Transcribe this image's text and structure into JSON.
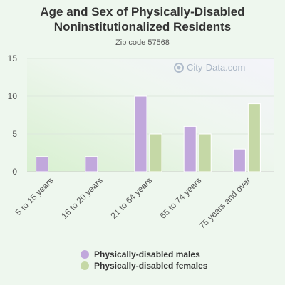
{
  "title": "Age and Sex of Physically-Disabled Noninstitutionalized Residents",
  "subtitle": "Zip code 57568",
  "watermark": "City-Data.com",
  "colors": {
    "males": "#c1a8dc",
    "females": "#c5d8a6",
    "gridline": "#dde8dd",
    "axis": "#cccccc"
  },
  "chart_data": {
    "type": "bar",
    "categories": [
      "5 to 15 years",
      "16 to 20 years",
      "21 to 64 years",
      "65 to 74 years",
      "75 years and over"
    ],
    "series": [
      {
        "name": "Physically-disabled males",
        "values": [
          2,
          2,
          10,
          6,
          3
        ]
      },
      {
        "name": "Physically-disabled females",
        "values": [
          0,
          0,
          5,
          5,
          9
        ]
      }
    ],
    "ylim": [
      0,
      15
    ],
    "yticks": [
      0,
      5,
      10,
      15
    ],
    "grid": true,
    "legend": "bottom"
  }
}
